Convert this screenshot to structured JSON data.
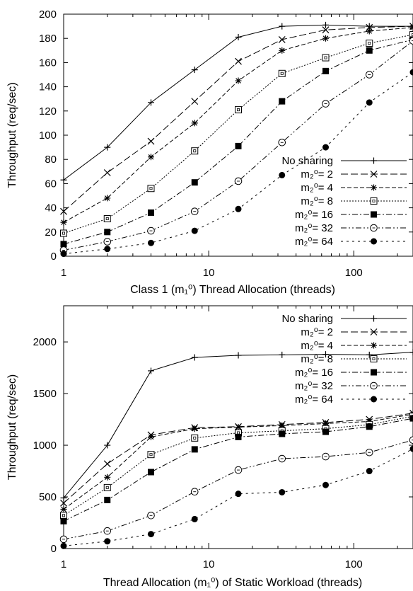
{
  "chart_data": [
    {
      "type": "line",
      "xlabel": "Class 1 (m₁⁰) Thread Allocation (threads)",
      "ylabel": "Throughput (req/sec)",
      "xscale": "log",
      "xlim": [
        1,
        256
      ],
      "ylim": [
        0,
        200
      ],
      "yticks": [
        0,
        20,
        40,
        60,
        80,
        100,
        120,
        140,
        160,
        180,
        200
      ],
      "xticks": [
        1,
        10,
        100
      ],
      "legend": "bottom-right",
      "grid": false,
      "x": [
        1,
        2,
        4,
        8,
        16,
        32,
        64,
        128,
        256
      ],
      "series": [
        {
          "name": "No sharing",
          "marker": "plus",
          "dash": "solid",
          "values": [
            63,
            90,
            127,
            154,
            181,
            190,
            191,
            190,
            190
          ]
        },
        {
          "name": "m₂⁰= 2",
          "marker": "x",
          "dash": "longdash",
          "values": [
            37,
            69,
            95,
            128,
            161,
            179,
            187,
            189,
            190
          ]
        },
        {
          "name": "m₂⁰= 4",
          "marker": "star",
          "dash": "dash",
          "values": [
            28,
            48,
            82,
            110,
            145,
            170,
            180,
            186,
            189
          ]
        },
        {
          "name": "m₂⁰= 8",
          "marker": "open-square",
          "dash": "dot",
          "values": [
            19,
            31,
            56,
            87,
            121,
            151,
            164,
            176,
            183
          ]
        },
        {
          "name": "m₂⁰= 16",
          "marker": "filled-square",
          "dash": "dashdot",
          "values": [
            10,
            20,
            36,
            61,
            91,
            128,
            153,
            170,
            179
          ]
        },
        {
          "name": "m₂⁰= 32",
          "marker": "open-circle",
          "dash": "dashdotdot",
          "values": [
            5,
            12,
            21,
            37,
            62,
            94,
            126,
            150,
            178
          ]
        },
        {
          "name": "m₂⁰= 64",
          "marker": "filled-circle",
          "dash": "sparsedot",
          "values": [
            2,
            6,
            11,
            21,
            39,
            67,
            90,
            127,
            152
          ]
        }
      ]
    },
    {
      "type": "line",
      "xlabel": "Thread Allocation (m₁⁰) of Static Workload (threads)",
      "ylabel": "Throughput (req/sec)",
      "xscale": "log",
      "xlim": [
        1,
        256
      ],
      "ylim": [
        0,
        2350
      ],
      "yticks": [
        0,
        500,
        1000,
        1500,
        2000
      ],
      "xticks": [
        1,
        10,
        100
      ],
      "legend": "top-right",
      "grid": false,
      "x": [
        1,
        2,
        4,
        8,
        16,
        32,
        64,
        128,
        256
      ],
      "series": [
        {
          "name": "No sharing",
          "marker": "plus",
          "dash": "solid",
          "values": [
            490,
            1000,
            1720,
            1850,
            1870,
            1875,
            1880,
            1875,
            1900
          ]
        },
        {
          "name": "m₂⁰= 2",
          "marker": "x",
          "dash": "longdash",
          "values": [
            440,
            820,
            1100,
            1170,
            1180,
            1200,
            1220,
            1250,
            1310
          ]
        },
        {
          "name": "m₂⁰= 4",
          "marker": "star",
          "dash": "dash",
          "values": [
            380,
            690,
            1080,
            1160,
            1175,
            1190,
            1210,
            1230,
            1300
          ]
        },
        {
          "name": "m₂⁰= 8",
          "marker": "open-square",
          "dash": "dot",
          "values": [
            320,
            590,
            910,
            1070,
            1120,
            1140,
            1160,
            1200,
            1280
          ]
        },
        {
          "name": "m₂⁰= 16",
          "marker": "filled-square",
          "dash": "dashdot",
          "values": [
            265,
            470,
            740,
            960,
            1080,
            1110,
            1130,
            1180,
            1260
          ]
        },
        {
          "name": "m₂⁰= 32",
          "marker": "open-circle",
          "dash": "dashdotdot",
          "values": [
            90,
            170,
            320,
            550,
            760,
            870,
            890,
            930,
            1050
          ]
        },
        {
          "name": "m₂⁰= 64",
          "marker": "filled-circle",
          "dash": "sparsedot",
          "values": [
            25,
            70,
            140,
            285,
            530,
            545,
            615,
            750,
            965
          ]
        }
      ]
    }
  ]
}
